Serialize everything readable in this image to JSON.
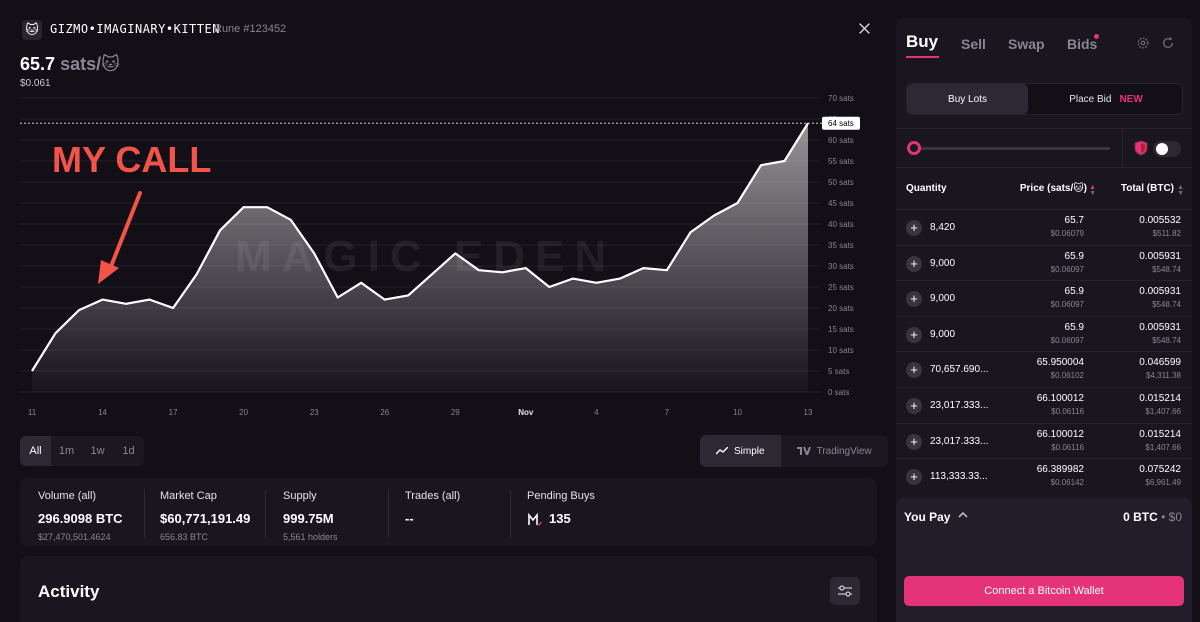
{
  "header": {
    "logo_emoji": "🐱",
    "token_name": "GIZMO•IMAGINARY•KITTEN",
    "rune_id": "Rune #123452",
    "x_icon": "x-logo-icon"
  },
  "price": {
    "value": "65.7",
    "unit": "sats/🐱",
    "usd": "$0.061"
  },
  "chart_data": {
    "type": "area",
    "y_unit": "sats",
    "ylim": [
      0,
      70
    ],
    "y_ticks": [
      "0 sats",
      "5 sats",
      "10 sats",
      "15 sats",
      "20 sats",
      "25 sats",
      "30 sats",
      "35 sats",
      "40 sats",
      "45 sats",
      "50 sats",
      "55 sats",
      "60 sats",
      "65 sats",
      "70 sats"
    ],
    "x_ticks": [
      "11",
      "14",
      "17",
      "20",
      "23",
      "26",
      "29",
      "Nov",
      "4",
      "7",
      "10",
      "13"
    ],
    "current_label": "64 sats",
    "current_value": 64,
    "watermark": "MAGIC EDEN",
    "annotation_text": "MY CALL",
    "values": [
      5,
      14,
      19.5,
      22,
      21,
      22,
      20,
      28,
      38.5,
      44,
      44,
      41,
      33,
      22.5,
      26,
      22,
      23,
      28,
      33,
      29,
      28.5,
      29.5,
      25,
      27,
      26,
      27,
      29.5,
      29,
      38,
      42,
      45,
      54,
      55,
      64
    ]
  },
  "timeframes": [
    {
      "label": "All",
      "active": true
    },
    {
      "label": "1m",
      "active": false
    },
    {
      "label": "1w",
      "active": false
    },
    {
      "label": "1d",
      "active": false
    }
  ],
  "chart_modes": {
    "simple": "Simple",
    "tradingview": "TradingView"
  },
  "stats": {
    "volume": {
      "label": "Volume (all)",
      "value": "296.9098 BTC",
      "sub": "$27,470,501.4624"
    },
    "market_cap": {
      "label": "Market Cap",
      "value": "$60,771,191.49",
      "sub": "656.83 BTC"
    },
    "supply": {
      "label": "Supply",
      "value": "999.75M",
      "sub": "5,561 holders"
    },
    "trades": {
      "label": "Trades (all)",
      "value": "--"
    },
    "pending": {
      "label": "Pending Buys",
      "value": "135"
    }
  },
  "activity": {
    "title": "Activity"
  },
  "panel": {
    "tabs": [
      "Buy",
      "Sell",
      "Swap",
      "Bids"
    ],
    "buy_lots": "Buy Lots",
    "place_bid": "Place Bid",
    "new_badge": "NEW",
    "columns": {
      "quantity": "Quantity",
      "price": "Price (sats/🐱)",
      "total": "Total (BTC)"
    },
    "rows": [
      {
        "qty": "8,420",
        "price": "65.7",
        "price_usd": "$0.06079",
        "total": "0.005532",
        "total_usd": "$511.82"
      },
      {
        "qty": "9,000",
        "price": "65.9",
        "price_usd": "$0.06097",
        "total": "0.005931",
        "total_usd": "$548.74"
      },
      {
        "qty": "9,000",
        "price": "65.9",
        "price_usd": "$0.06097",
        "total": "0.005931",
        "total_usd": "$548.74"
      },
      {
        "qty": "9,000",
        "price": "65.9",
        "price_usd": "$0.06097",
        "total": "0.005931",
        "total_usd": "$548.74"
      },
      {
        "qty": "70,657.690...",
        "price": "65.950004",
        "price_usd": "$0.06102",
        "total": "0.046599",
        "total_usd": "$4,311.38"
      },
      {
        "qty": "23,017.333...",
        "price": "66.100012",
        "price_usd": "$0.06116",
        "total": "0.015214",
        "total_usd": "$1,407.66"
      },
      {
        "qty": "23,017.333...",
        "price": "66.100012",
        "price_usd": "$0.06116",
        "total": "0.015214",
        "total_usd": "$1,407.66"
      },
      {
        "qty": "113,333.33...",
        "price": "66.389982",
        "price_usd": "$0.06142",
        "total": "0.075242",
        "total_usd": "$6,961.49"
      }
    ],
    "you_pay": "You Pay",
    "pay_btc": "0 BTC",
    "pay_sep": " • ",
    "pay_usd": "$0",
    "connect": "Connect a Bitcoin Wallet"
  },
  "colors": {
    "accent": "#e5337a",
    "annotation": "#f2544a",
    "background": "#120f17"
  }
}
